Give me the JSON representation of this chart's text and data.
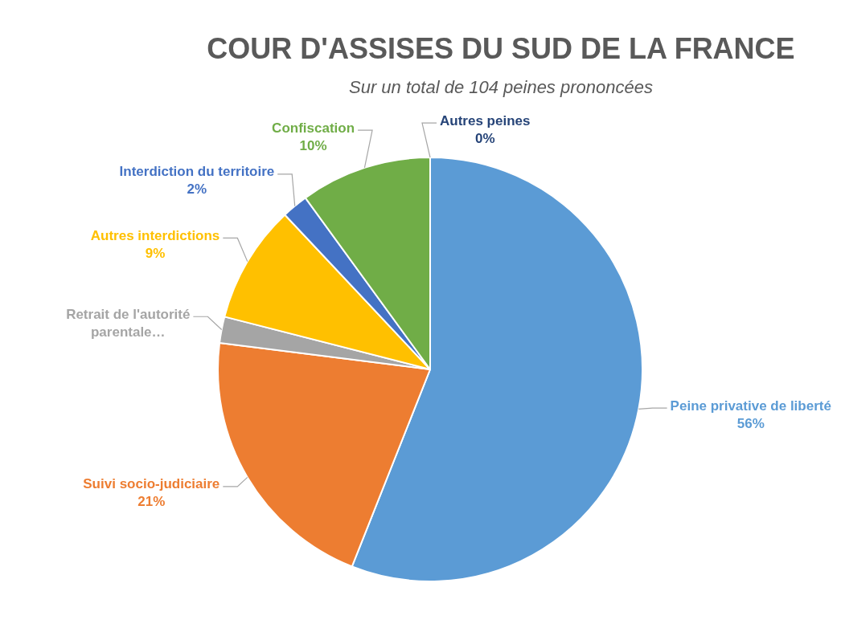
{
  "chart_data": {
    "type": "pie",
    "title": "COUR D'ASSISES DU SUD DE LA FRANCE",
    "subtitle": "Sur un total de 104 peines prononcées",
    "categories": [
      "Autres peines",
      "Peine privative de liberté",
      "Suivi socio-judiciaire",
      "Retrait de l'autorité parentale…",
      "Autres interdictions",
      "Interdiction du territoire",
      "Confiscation"
    ],
    "values": [
      0,
      56,
      21,
      2,
      9,
      2,
      10
    ],
    "colors": [
      "#264478",
      "#5b9bd5",
      "#ed7d31",
      "#a5a5a5",
      "#ffc000",
      "#4472c4",
      "#70ad47"
    ],
    "value_labels": [
      "0%",
      "56%",
      "21%",
      null,
      "9%",
      "2%",
      "10%"
    ],
    "legend": false
  }
}
